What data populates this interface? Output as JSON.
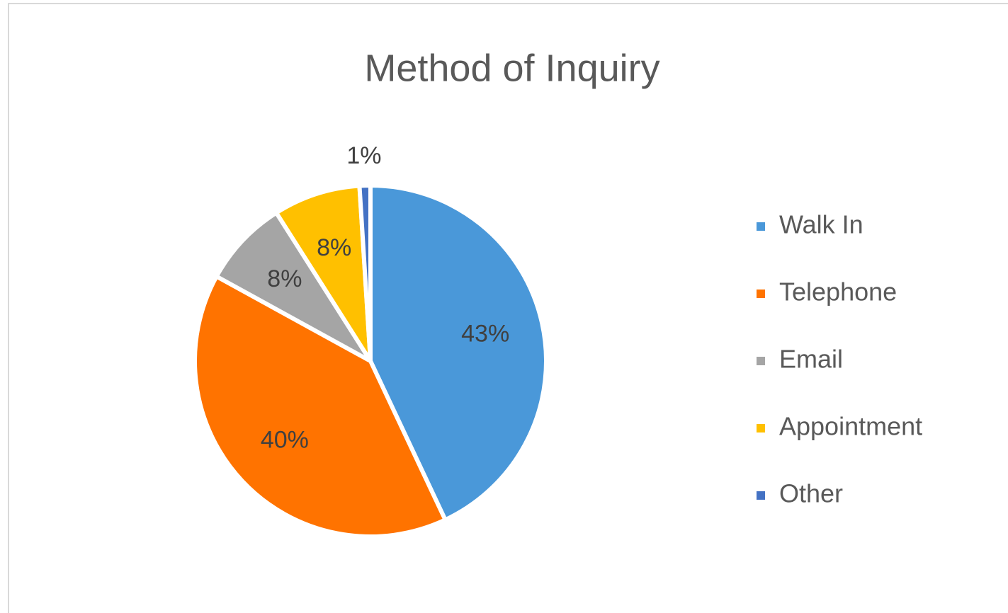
{
  "chart_data": {
    "type": "pie",
    "title": "Method of Inquiry",
    "categories": [
      "Walk In",
      "Telephone",
      "Email",
      "Appointment",
      "Other"
    ],
    "values": [
      43,
      40,
      8,
      8,
      1
    ],
    "value_labels": [
      "43%",
      "40%",
      "8%",
      "8%",
      "1%"
    ],
    "colors": [
      "#4a98d9",
      "#ff7300",
      "#a5a5a5",
      "#ffc000",
      "#4472c4"
    ],
    "legend": "right"
  }
}
